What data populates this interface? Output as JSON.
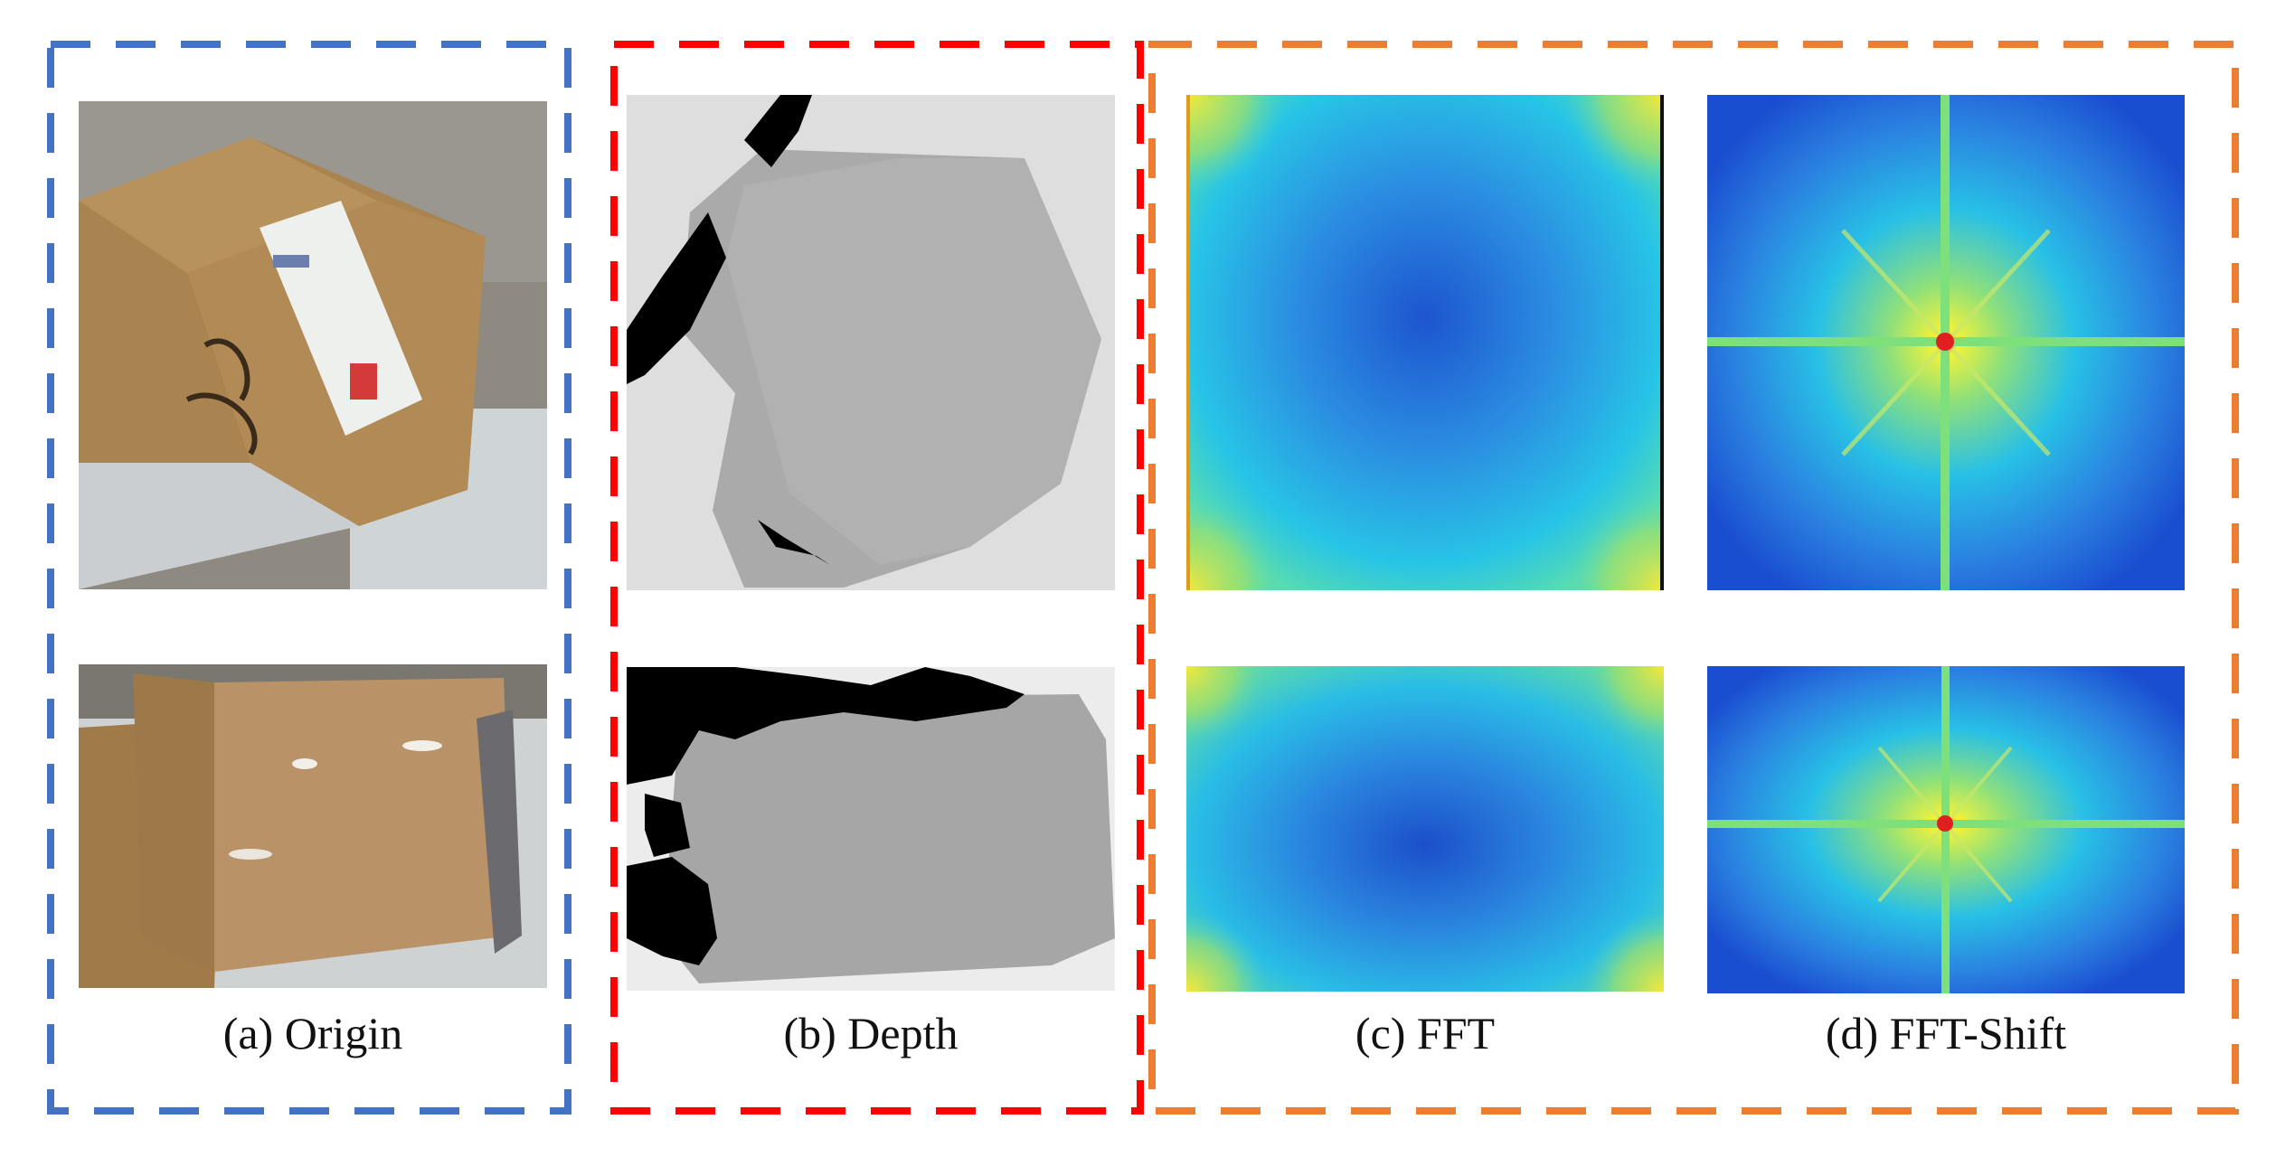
{
  "groups": [
    {
      "id": "origin",
      "caption": "(a) Origin",
      "border_color": "#4472c4"
    },
    {
      "id": "depth",
      "caption": "(b) Depth",
      "border_color": "#ff0000"
    },
    {
      "id": "fft_group",
      "border_color": "#ed7d31"
    }
  ],
  "captions": {
    "origin": "(a) Origin",
    "depth": "(b) Depth",
    "fft": "(c) FFT",
    "fft_shift": "(d) FFT-Shift"
  },
  "colors": {
    "origin_border": "#4472c4",
    "depth_border": "#ff0000",
    "fft_border": "#ed7d31",
    "box_cardboard": "#b08a5c",
    "depth_gray": "#a8a8a8",
    "spectrum_low": "#1f5fd6",
    "spectrum_mid": "#24c6e8",
    "spectrum_high": "#f2f23a",
    "spectrum_peak": "#e02020"
  }
}
